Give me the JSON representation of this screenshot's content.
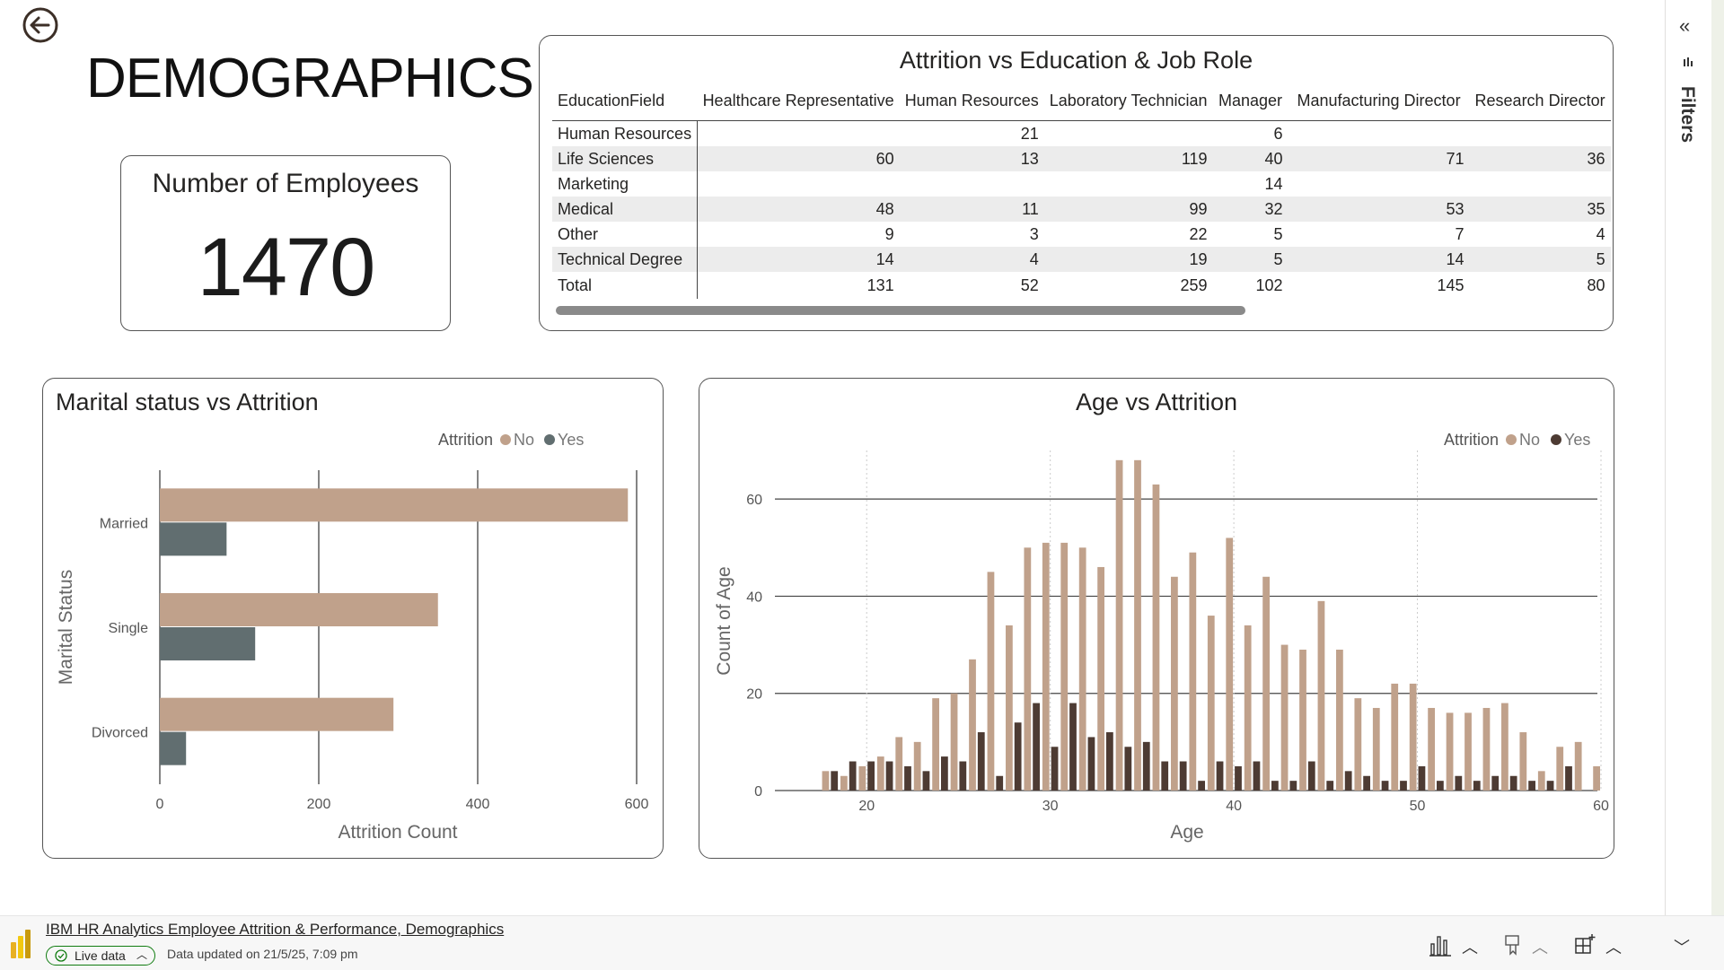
{
  "page": {
    "title": "DEMOGRAPHICS"
  },
  "kpi": {
    "title": "Number of Employees",
    "value": "1470"
  },
  "matrix": {
    "title": "Attrition vs Education & Job Role",
    "columns": [
      "EducationField",
      "Healthcare Representative",
      "Human Resources",
      "Laboratory Technician",
      "Manager",
      "Manufacturing Director",
      "Research Director"
    ],
    "rows": [
      [
        "Human Resources",
        "",
        "21",
        "",
        "6",
        "",
        ""
      ],
      [
        "Life Sciences",
        "60",
        "13",
        "119",
        "40",
        "71",
        "36"
      ],
      [
        "Marketing",
        "",
        "",
        "",
        "14",
        "",
        ""
      ],
      [
        "Medical",
        "48",
        "11",
        "99",
        "32",
        "53",
        "35"
      ],
      [
        "Other",
        "9",
        "3",
        "22",
        "5",
        "7",
        "4"
      ],
      [
        "Technical Degree",
        "14",
        "4",
        "19",
        "5",
        "14",
        "5"
      ]
    ],
    "total": [
      "Total",
      "131",
      "52",
      "259",
      "102",
      "145",
      "80"
    ]
  },
  "colors": {
    "no": "#c0a18b",
    "yes_marital": "#616e70",
    "yes_age": "#4d3b33"
  },
  "chart_data": [
    {
      "type": "bar",
      "orientation": "horizontal",
      "title": "Marital status vs Attrition",
      "legend_title": "Attrition",
      "legend_position": "top-right",
      "categories": [
        "Married",
        "Single",
        "Divorced"
      ],
      "series": [
        {
          "name": "No",
          "values": [
            589,
            350,
            294
          ]
        },
        {
          "name": "Yes",
          "values": [
            84,
            120,
            33
          ]
        }
      ],
      "xlabel": "Attrition Count",
      "ylabel": "Marital Status",
      "xlim": [
        0,
        600
      ],
      "xticks": [
        "0",
        "200",
        "400",
        "600"
      ],
      "grid": true
    },
    {
      "type": "bar",
      "title": "Age vs Attrition",
      "legend_title": "Attrition",
      "legend_position": "top-right",
      "x": [
        18,
        19,
        20,
        21,
        22,
        23,
        24,
        25,
        26,
        27,
        28,
        29,
        30,
        31,
        32,
        33,
        34,
        35,
        36,
        37,
        38,
        39,
        40,
        41,
        42,
        43,
        44,
        45,
        46,
        47,
        48,
        49,
        50,
        51,
        52,
        53,
        54,
        55,
        56,
        57,
        58,
        59,
        60
      ],
      "series": [
        {
          "name": "No",
          "values": [
            4,
            3,
            5,
            7,
            11,
            10,
            19,
            20,
            27,
            45,
            34,
            50,
            51,
            51,
            50,
            46,
            68,
            68,
            63,
            44,
            49,
            36,
            52,
            34,
            44,
            30,
            29,
            39,
            29,
            19,
            17,
            22,
            22,
            17,
            16,
            16,
            17,
            18,
            12,
            4,
            9,
            10,
            5
          ]
        },
        {
          "name": "Yes",
          "values": [
            4,
            6,
            6,
            6,
            5,
            4,
            7,
            6,
            12,
            3,
            14,
            18,
            9,
            18,
            11,
            12,
            9,
            10,
            6,
            6,
            2,
            6,
            5,
            6,
            2,
            2,
            6,
            2,
            4,
            3,
            2,
            2,
            5,
            2,
            3,
            2,
            3,
            3,
            2,
            2,
            5,
            0,
            0
          ]
        }
      ],
      "xlabel": "Age",
      "ylabel": "Count of Age",
      "xlim": [
        15,
        60
      ],
      "ylim": [
        0,
        70
      ],
      "xticks": [
        "20",
        "30",
        "40",
        "50",
        "60"
      ],
      "yticks": [
        "0",
        "20",
        "40",
        "60"
      ],
      "grid": true
    }
  ],
  "rail": {
    "collapse_glyph": "«",
    "filters_label": "Filters"
  },
  "footer": {
    "report_title": "IBM HR Analytics Employee Attrition & Performance, Demographics",
    "live_label": "Live data",
    "updated_text": "Data updated on 21/5/25, 7:09 pm"
  }
}
